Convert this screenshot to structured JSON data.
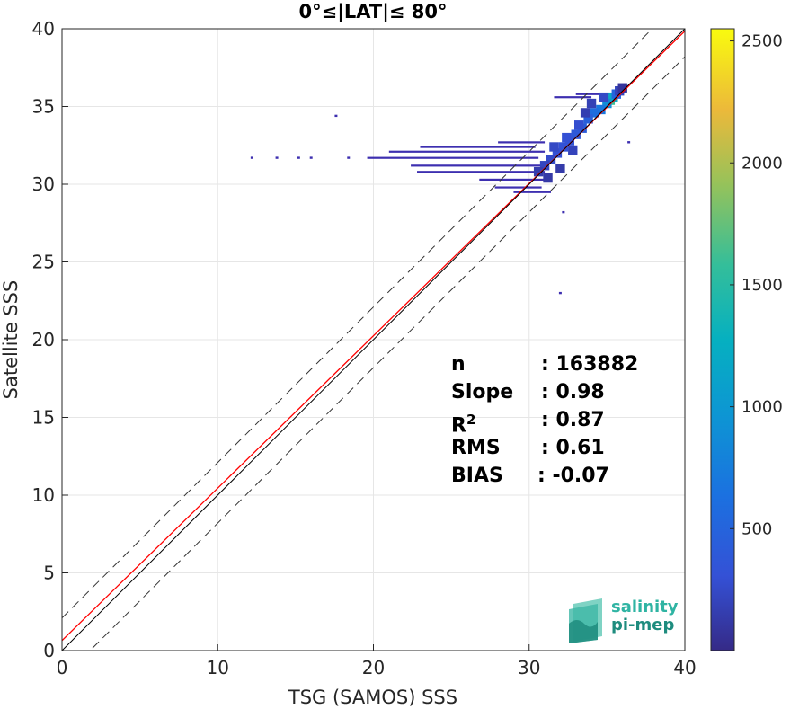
{
  "chart_data": {
    "type": "heatmap",
    "title": "0°≤|LAT|≤ 80°",
    "xlabel": "TSG (SAMOS) SSS",
    "ylabel": "Satellite SSS",
    "xlim": [
      0,
      40
    ],
    "ylim": [
      0,
      40
    ],
    "xticks": [
      "0",
      "10",
      "20",
      "30",
      "40"
    ],
    "yticks": [
      "0",
      "5",
      "10",
      "15",
      "20",
      "25",
      "30",
      "35",
      "40"
    ],
    "grid": true,
    "colorbar": {
      "range": [
        0,
        2550
      ],
      "ticks": [
        "500",
        "1000",
        "1500",
        "2000",
        "2500"
      ],
      "colormap": "parula"
    },
    "lines": {
      "identity": {
        "color": "#000000",
        "slope": 1,
        "intercept": 0
      },
      "fit": {
        "color": "#ff0000",
        "slope": 0.98,
        "intercept": 0.65
      },
      "upper_bound": {
        "style": "dashed",
        "slope": 1,
        "intercept": 2.1
      },
      "lower_bound": {
        "style": "dashed",
        "slope": 1,
        "intercept": -1.8
      }
    },
    "density_cells": [
      {
        "x": 35.2,
        "y": 35.4,
        "n": 1600
      },
      {
        "x": 35.4,
        "y": 35.6,
        "n": 1200
      },
      {
        "x": 35.0,
        "y": 35.2,
        "n": 900
      },
      {
        "x": 34.6,
        "y": 34.8,
        "n": 700
      },
      {
        "x": 34.2,
        "y": 34.6,
        "n": 600
      },
      {
        "x": 33.8,
        "y": 34.2,
        "n": 450
      },
      {
        "x": 33.4,
        "y": 33.6,
        "n": 420
      },
      {
        "x": 33.0,
        "y": 33.2,
        "n": 380
      },
      {
        "x": 32.6,
        "y": 32.8,
        "n": 350
      },
      {
        "x": 32.2,
        "y": 32.4,
        "n": 320
      },
      {
        "x": 31.8,
        "y": 32.0,
        "n": 300
      },
      {
        "x": 31.4,
        "y": 31.6,
        "n": 260
      },
      {
        "x": 31.0,
        "y": 31.2,
        "n": 220
      },
      {
        "x": 30.6,
        "y": 30.8,
        "n": 150
      },
      {
        "x": 32.4,
        "y": 33.0,
        "n": 300
      },
      {
        "x": 33.2,
        "y": 33.8,
        "n": 280
      },
      {
        "x": 31.6,
        "y": 32.4,
        "n": 240
      },
      {
        "x": 32.8,
        "y": 32.2,
        "n": 200
      },
      {
        "x": 34.0,
        "y": 35.2,
        "n": 180
      },
      {
        "x": 33.6,
        "y": 34.6,
        "n": 160
      },
      {
        "x": 31.2,
        "y": 30.4,
        "n": 120
      },
      {
        "x": 32.0,
        "y": 31.0,
        "n": 130
      },
      {
        "x": 35.6,
        "y": 35.8,
        "n": 500
      },
      {
        "x": 35.8,
        "y": 36.0,
        "n": 200
      },
      {
        "x": 36.0,
        "y": 36.2,
        "n": 80
      },
      {
        "x": 34.8,
        "y": 35.6,
        "n": 240
      }
    ],
    "sparse_points": [
      {
        "x": 17.6,
        "y": 34.4
      },
      {
        "x": 12.2,
        "y": 31.7
      },
      {
        "x": 13.8,
        "y": 31.7
      },
      {
        "x": 15.2,
        "y": 31.7
      },
      {
        "x": 16.0,
        "y": 31.7
      },
      {
        "x": 18.4,
        "y": 31.7
      },
      {
        "x": 32.0,
        "y": 23.0
      },
      {
        "x": 32.2,
        "y": 28.2
      },
      {
        "x": 36.4,
        "y": 32.7
      }
    ],
    "sparse_streaks": [
      {
        "x1": 19.6,
        "x2": 30.6,
        "y": 31.7
      },
      {
        "x1": 21.0,
        "x2": 31.0,
        "y": 32.1
      },
      {
        "x1": 22.4,
        "x2": 31.2,
        "y": 31.2
      },
      {
        "x1": 22.8,
        "x2": 31.0,
        "y": 30.8
      },
      {
        "x1": 26.8,
        "x2": 31.2,
        "y": 30.3
      },
      {
        "x1": 23.0,
        "x2": 30.4,
        "y": 32.4
      },
      {
        "x1": 28.0,
        "x2": 31.0,
        "y": 32.7
      },
      {
        "x1": 29.0,
        "x2": 31.4,
        "y": 29.5
      },
      {
        "x1": 27.8,
        "x2": 30.8,
        "y": 29.8
      },
      {
        "x1": 31.6,
        "x2": 34.0,
        "y": 35.6
      },
      {
        "x1": 33.0,
        "x2": 35.4,
        "y": 35.8
      }
    ]
  },
  "stats": [
    {
      "key": "n",
      "value": ": 163882"
    },
    {
      "key": "Slope",
      "value": ": 0.98"
    },
    {
      "key": "R",
      "sup": "2",
      "value": ": 0.87"
    },
    {
      "key": "RMS",
      "value": ": 0.61"
    },
    {
      "key": "BIAS",
      "value": ": -0.07"
    }
  ],
  "logo": {
    "line1": "salinity",
    "line2": "pi-mep"
  }
}
